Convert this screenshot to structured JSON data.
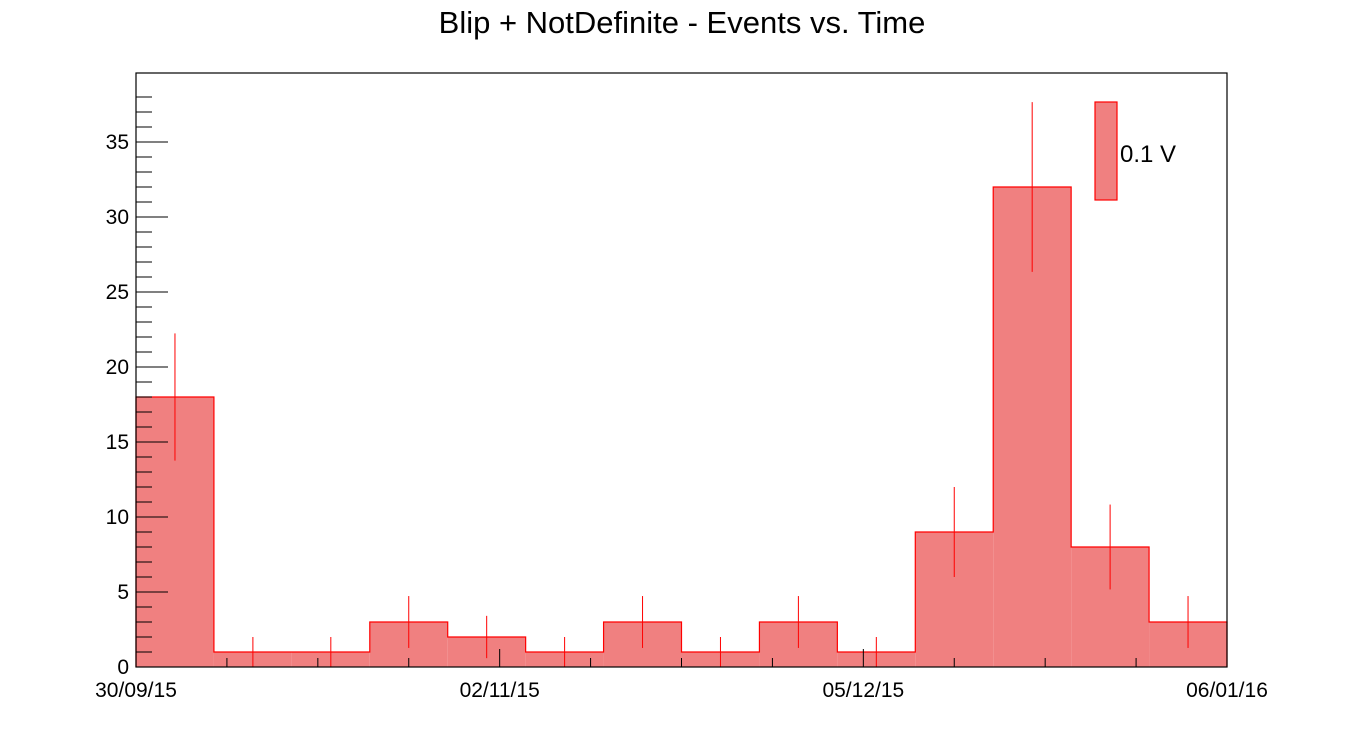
{
  "chart_data": {
    "type": "bar",
    "title": "Blip + NotDefinite - Events vs. Time",
    "xlabel": "",
    "ylabel": "",
    "x_tick_labels": [
      "30/09/15",
      "02/11/15",
      "05/12/15",
      "06/01/16"
    ],
    "y_tick_labels": [
      "0",
      "5",
      "10",
      "15",
      "20",
      "25",
      "30",
      "35"
    ],
    "ylim": [
      0,
      39.6
    ],
    "grid": false,
    "legend": {
      "position": "top-right"
    },
    "series": [
      {
        "name": "0.1 V",
        "color": "#f08080",
        "edge_color": "#ff0000",
        "values": [
          18,
          1,
          1,
          3,
          2,
          1,
          3,
          1,
          3,
          1,
          9,
          32,
          8,
          3
        ],
        "errors": [
          4.24,
          1,
          1,
          1.73,
          1.41,
          1,
          1.73,
          1,
          1.73,
          1,
          3,
          5.66,
          2.83,
          1.73
        ]
      }
    ]
  }
}
